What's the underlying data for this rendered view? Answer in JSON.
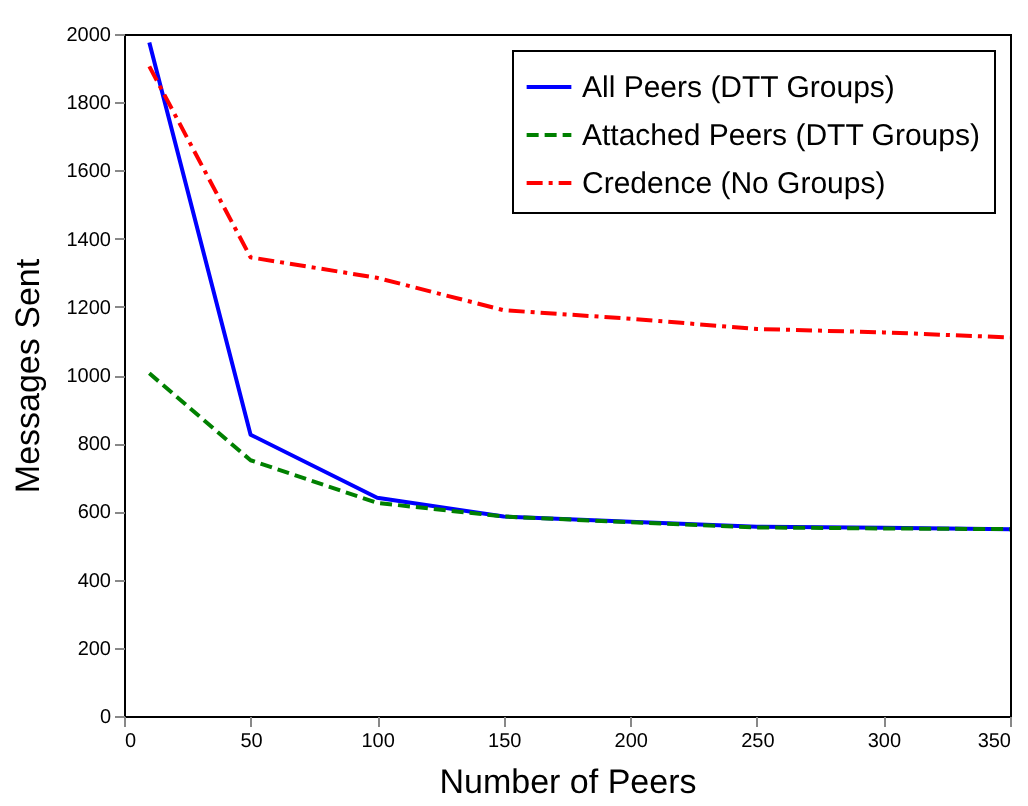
{
  "chart_data": {
    "type": "line",
    "xlabel": "Number of Peers",
    "ylabel": "Messages Sent",
    "x": [
      10,
      50,
      100,
      150,
      200,
      250,
      300,
      350
    ],
    "series": [
      {
        "name": "All Peers (DTT Groups)",
        "color": "#0000ff",
        "line_style": "solid",
        "values": [
          1975,
          825,
          640,
          585,
          570,
          555,
          552,
          548
        ]
      },
      {
        "name": "Attached Peers (DTT Groups)",
        "color": "#008000",
        "line_style": "dashed",
        "values": [
          1005,
          750,
          625,
          585,
          568,
          553,
          550,
          548
        ]
      },
      {
        "name": "Credence (No Groups)",
        "color": "#ff0000",
        "line_style": "dotted",
        "values": [
          1905,
          1345,
          1285,
          1190,
          1165,
          1135,
          1125,
          1110
        ]
      }
    ],
    "xlim": [
      0,
      350
    ],
    "xticks": [
      0,
      50,
      100,
      150,
      200,
      250,
      300,
      350
    ],
    "ylim": [
      0,
      2000
    ],
    "yticks": [
      0,
      200,
      400,
      600,
      800,
      1000,
      1200,
      1400,
      1600,
      1800,
      2000
    ],
    "grid": false,
    "legend": "top right",
    "marker": "none"
  }
}
